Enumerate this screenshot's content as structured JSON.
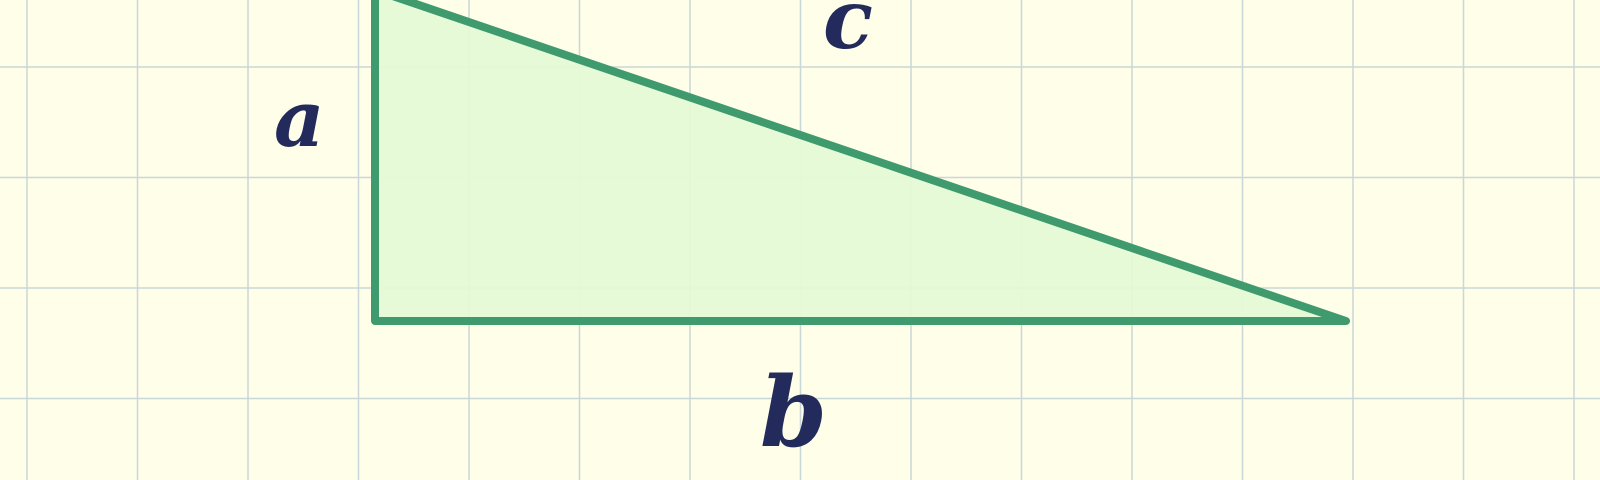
{
  "diagram": {
    "labels": {
      "a": "a",
      "b": "b",
      "c": "c"
    },
    "colors": {
      "background": "#fefee9",
      "grid": "#c9d7d8",
      "triangle_fill": "#e6fad6",
      "triangle_stroke": "#3f9a6e",
      "label": "#232a5c"
    }
  }
}
